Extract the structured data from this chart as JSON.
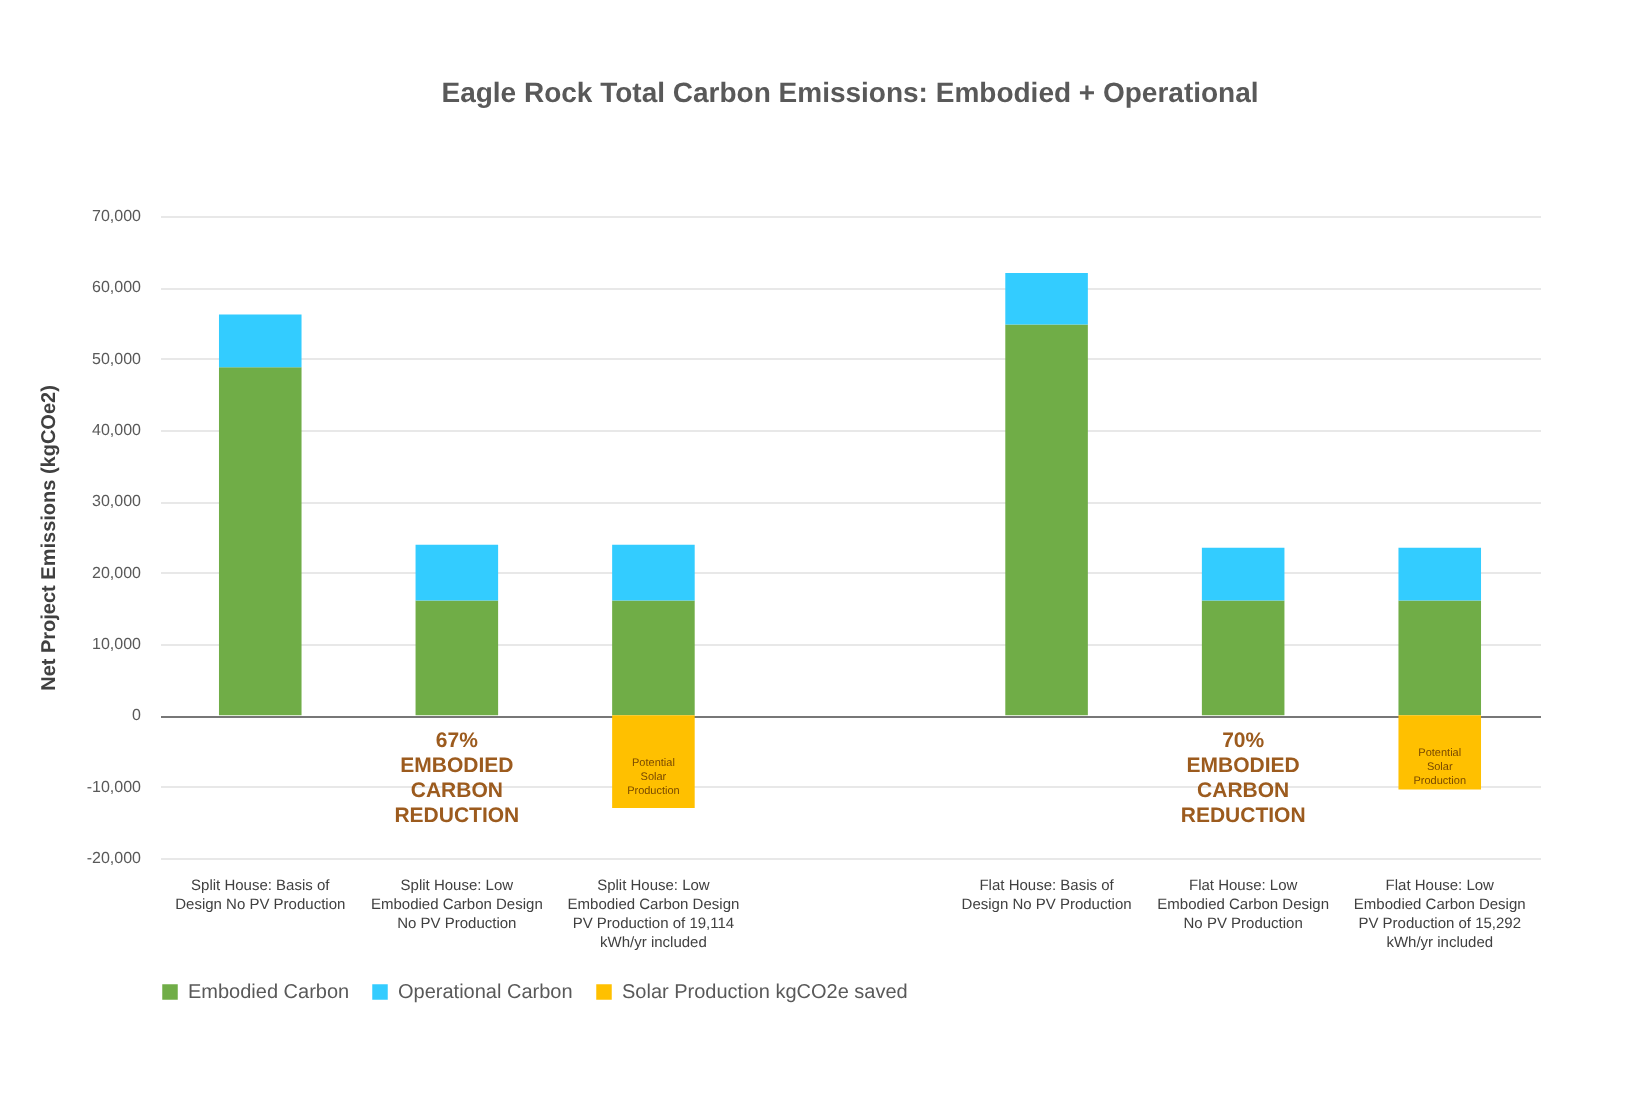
{
  "chart_data": {
    "type": "bar",
    "stacked": true,
    "title": "Eagle Rock Total Carbon Emissions: Embodied + Operational",
    "ylabel": "Net Project Emissions (kgCOe2)",
    "categories": [
      "Split House: Basis of Design No PV Production",
      "Split House: Low Embodied Carbon Design No PV Production",
      "Split House: Low Embodied Carbon Design PV Production of 19,114 kWh/yr included",
      null,
      "Flat House: Basis of Design No PV Production",
      "Flat House: Low Embodied Carbon Design No PV Production",
      "Flat House: Low Embodied Carbon Design PV Production of 15,292 kWh/yr included"
    ],
    "series": [
      {
        "name": "Embodied Carbon",
        "color": "#70ad47",
        "values": [
          48800,
          16100,
          16100,
          null,
          54800,
          16100,
          16100
        ]
      },
      {
        "name": "Operational Carbon",
        "color": "#33ccff",
        "values": [
          7400,
          7800,
          7800,
          null,
          7200,
          7400,
          7400
        ]
      },
      {
        "name": "Solar Production kgCO2e saved",
        "color": "#ffc000",
        "values": [
          null,
          null,
          -13000,
          null,
          null,
          null,
          -10400
        ],
        "value_labels": [
          null,
          null,
          "Potential Solar Production",
          null,
          null,
          null,
          "Potential Solar Production"
        ]
      }
    ],
    "ylim": [
      -20000,
      70000
    ],
    "yticks": [
      {
        "value": -20000,
        "label": "-20,000"
      },
      {
        "value": -10000,
        "label": "-10,000"
      },
      0,
      {
        "value": 10000,
        "label": "10,000"
      },
      {
        "value": 20000,
        "label": "20,000"
      },
      {
        "value": 30000,
        "label": "30,000"
      },
      {
        "value": 40000,
        "label": "40,000"
      },
      {
        "value": 50000,
        "label": "50,000"
      },
      {
        "value": 60000,
        "label": "60,000"
      },
      {
        "value": 70000,
        "label": "70,000"
      }
    ],
    "grid": "y",
    "legend": "bottom",
    "annotations": [
      "67% EMBODIED CARBON REDUCTION",
      "70% EMBODIED CARBON REDUCTION"
    ]
  }
}
